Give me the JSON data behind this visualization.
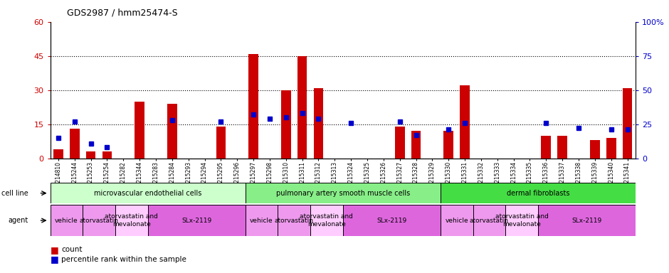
{
  "title": "GDS2987 / hmm25474-S",
  "samples": [
    "GSM214810",
    "GSM215244",
    "GSM215253",
    "GSM215254",
    "GSM215282",
    "GSM215344",
    "GSM215283",
    "GSM215284",
    "GSM215293",
    "GSM215294",
    "GSM215295",
    "GSM215296",
    "GSM215297",
    "GSM215298",
    "GSM215310",
    "GSM215311",
    "GSM215312",
    "GSM215313",
    "GSM215324",
    "GSM215325",
    "GSM215326",
    "GSM215327",
    "GSM215328",
    "GSM215329",
    "GSM215330",
    "GSM215331",
    "GSM215332",
    "GSM215333",
    "GSM215334",
    "GSM215335",
    "GSM215336",
    "GSM215337",
    "GSM215338",
    "GSM215339",
    "GSM215340",
    "GSM215341"
  ],
  "counts": [
    4,
    13,
    3,
    3,
    0,
    25,
    0,
    24,
    0,
    0,
    14,
    0,
    46,
    0,
    30,
    45,
    31,
    0,
    0,
    0,
    0,
    14,
    12,
    0,
    12,
    32,
    0,
    0,
    0,
    0,
    10,
    10,
    0,
    8,
    9,
    31
  ],
  "percentiles": [
    15,
    27,
    11,
    8,
    0,
    0,
    0,
    28,
    0,
    0,
    27,
    0,
    32,
    29,
    30,
    33,
    29,
    0,
    26,
    0,
    0,
    27,
    17,
    0,
    21,
    26,
    0,
    0,
    0,
    0,
    26,
    0,
    22,
    0,
    21,
    21
  ],
  "left_ylim": [
    0,
    60
  ],
  "right_ylim": [
    0,
    100
  ],
  "left_yticks": [
    0,
    15,
    30,
    45,
    60
  ],
  "right_yticks": [
    0,
    25,
    50,
    75,
    100
  ],
  "left_yticklabels": [
    "0",
    "15",
    "30",
    "45",
    "60"
  ],
  "right_yticklabels": [
    "0",
    "25",
    "50",
    "75",
    "100%"
  ],
  "bar_color": "#cc0000",
  "dot_color": "#0000cc",
  "cell_line_groups": [
    {
      "label": "microvascular endothelial cells",
      "start": 0,
      "end": 11,
      "color": "#ccffcc"
    },
    {
      "label": "pulmonary artery smooth muscle cells",
      "start": 12,
      "end": 23,
      "color": "#88ee88"
    },
    {
      "label": "dermal fibroblasts",
      "start": 24,
      "end": 35,
      "color": "#44dd44"
    }
  ],
  "agent_groups": [
    {
      "label": "vehicle",
      "start": 0,
      "end": 1,
      "color": "#ee99ee"
    },
    {
      "label": "atorvastatin",
      "start": 2,
      "end": 3,
      "color": "#ee99ee"
    },
    {
      "label": "atorvastatin and\nmevalonate",
      "start": 4,
      "end": 5,
      "color": "#ffccff"
    },
    {
      "label": "SLx-2119",
      "start": 6,
      "end": 11,
      "color": "#dd66dd"
    },
    {
      "label": "vehicle",
      "start": 12,
      "end": 13,
      "color": "#ee99ee"
    },
    {
      "label": "atorvastatin",
      "start": 14,
      "end": 15,
      "color": "#ee99ee"
    },
    {
      "label": "atorvastatin and\nmevalonate",
      "start": 16,
      "end": 17,
      "color": "#ffccff"
    },
    {
      "label": "SLx-2119",
      "start": 18,
      "end": 23,
      "color": "#dd66dd"
    },
    {
      "label": "vehicle",
      "start": 24,
      "end": 25,
      "color": "#ee99ee"
    },
    {
      "label": "atorvastatin",
      "start": 26,
      "end": 27,
      "color": "#ee99ee"
    },
    {
      "label": "atorvastatin and\nmevalonate",
      "start": 28,
      "end": 29,
      "color": "#ffccff"
    },
    {
      "label": "SLx-2119",
      "start": 30,
      "end": 35,
      "color": "#dd66dd"
    }
  ],
  "left_label_color": "#cc0000",
  "right_label_color": "#0000cc"
}
